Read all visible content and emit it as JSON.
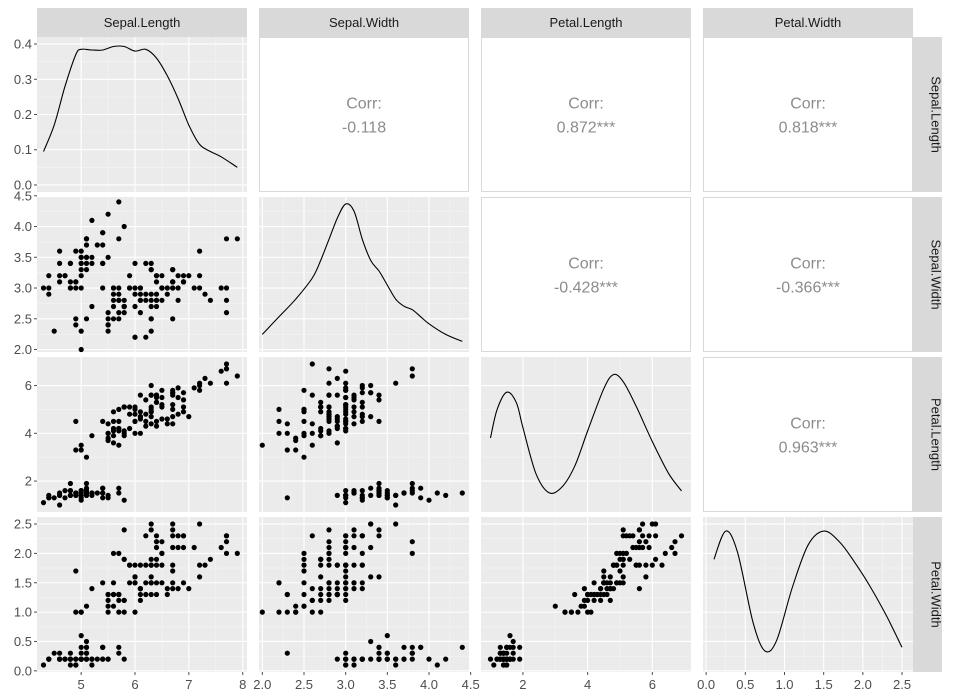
{
  "chart_data": {
    "type": "pairs",
    "title": "",
    "variables": [
      "Sepal.Length",
      "Sepal.Width",
      "Petal.Length",
      "Petal.Width"
    ],
    "colors": {
      "panel_bg": "#ebebeb",
      "grid_major": "#ffffff",
      "grid_minor": "#f5f5f5",
      "strip_bg": "#d9d9d9",
      "strip_text": "#1a1a1a",
      "axis_text": "#4d4d4d",
      "corr_text": "#8c8c8c",
      "corr_border": "#d9d9d9",
      "points": "#000000",
      "line": "#000000"
    },
    "ticks": [
      {
        "y": {
          "values": [
            0.0,
            0.1,
            0.2,
            0.3,
            0.4
          ],
          "labels": [
            "0.0",
            "0.1",
            "0.2",
            "0.3",
            "0.4"
          ]
        },
        "x": {
          "values": [
            5,
            6,
            7,
            8
          ],
          "labels": [
            "5",
            "6",
            "7",
            "8"
          ]
        }
      },
      {
        "y": {
          "values": [
            2.0,
            2.5,
            3.0,
            3.5,
            4.0,
            4.5
          ],
          "labels": [
            "2.0",
            "2.5",
            "3.0",
            "3.5",
            "4.0",
            "4.5"
          ]
        },
        "x": {
          "values": [
            2.0,
            2.5,
            3.0,
            3.5,
            4.0,
            4.5
          ],
          "labels": [
            "2.0",
            "2.5",
            "3.0",
            "3.5",
            "4.0",
            "4.5"
          ]
        }
      },
      {
        "y": {
          "values": [
            2,
            4,
            6
          ],
          "labels": [
            "2",
            "4",
            "6"
          ]
        },
        "x": {
          "values": [
            2,
            4,
            6
          ],
          "labels": [
            "2",
            "4",
            "6"
          ]
        }
      },
      {
        "y": {
          "values": [
            0.0,
            0.5,
            1.0,
            1.5,
            2.0,
            2.5
          ],
          "labels": [
            "0.0",
            "0.5",
            "1.0",
            "1.5",
            "2.0",
            "2.5"
          ]
        },
        "x": {
          "values": [
            0.0,
            0.5,
            1.0,
            1.5,
            2.0,
            2.5
          ],
          "labels": [
            "0.0",
            "0.5",
            "1.0",
            "1.5",
            "2.0",
            "2.5"
          ]
        }
      }
    ],
    "ranges": {
      "x": [
        [
          4.18,
          8.08
        ],
        [
          1.96,
          4.48
        ],
        [
          0.705,
          7.195
        ],
        [
          -0.04,
          2.64
        ]
      ],
      "y": [
        [
          -0.02,
          0.42
        ],
        [
          1.96,
          4.48
        ],
        [
          0.705,
          7.195
        ],
        [
          -0.02,
          2.62
        ]
      ],
      "density_y": [
        -0.02,
        0.42
      ]
    },
    "diagonal_densities": [
      {
        "variable": "Sepal.Length",
        "x": [
          4.3,
          4.5,
          4.7,
          4.9,
          5.0,
          5.2,
          5.4,
          5.6,
          5.8,
          6.0,
          6.2,
          6.4,
          6.6,
          6.8,
          7.0,
          7.2,
          7.4,
          7.6,
          7.9
        ],
        "y": [
          0.095,
          0.17,
          0.28,
          0.37,
          0.385,
          0.383,
          0.383,
          0.393,
          0.393,
          0.38,
          0.385,
          0.36,
          0.31,
          0.245,
          0.17,
          0.115,
          0.095,
          0.08,
          0.05
        ]
      },
      {
        "variable": "Sepal.Width",
        "x": [
          2.0,
          2.2,
          2.4,
          2.6,
          2.7,
          2.8,
          2.9,
          3.0,
          3.1,
          3.2,
          3.3,
          3.4,
          3.5,
          3.6,
          3.7,
          3.8,
          3.9,
          4.0,
          4.2,
          4.4
        ],
        "y": [
          0.03,
          0.08,
          0.13,
          0.19,
          0.24,
          0.3,
          0.36,
          0.4,
          0.38,
          0.3,
          0.24,
          0.21,
          0.17,
          0.13,
          0.11,
          0.1,
          0.08,
          0.06,
          0.03,
          0.01
        ]
      },
      {
        "variable": "Petal.Length",
        "x": [
          1.0,
          1.2,
          1.5,
          1.8,
          2.0,
          2.4,
          2.8,
          3.2,
          3.6,
          4.0,
          4.5,
          4.8,
          5.1,
          5.5,
          6.0,
          6.5,
          6.9
        ],
        "y": [
          0.19,
          0.27,
          0.32,
          0.29,
          0.22,
          0.09,
          0.035,
          0.05,
          0.11,
          0.21,
          0.33,
          0.37,
          0.35,
          0.28,
          0.18,
          0.09,
          0.04
        ]
      },
      {
        "variable": "Petal.Width",
        "x": [
          0.1,
          0.25,
          0.4,
          0.6,
          0.75,
          0.9,
          1.1,
          1.3,
          1.5,
          1.7,
          1.9,
          2.1,
          2.3,
          2.5
        ],
        "y": [
          0.3,
          0.38,
          0.32,
          0.12,
          0.04,
          0.07,
          0.22,
          0.34,
          0.38,
          0.35,
          0.29,
          0.22,
          0.14,
          0.05
        ]
      }
    ],
    "correlations": [
      {
        "row": 0,
        "col": 1,
        "label": "Corr:",
        "value": "-0.118"
      },
      {
        "row": 0,
        "col": 2,
        "label": "Corr:",
        "value": "0.872***"
      },
      {
        "row": 0,
        "col": 3,
        "label": "Corr:",
        "value": "0.818***"
      },
      {
        "row": 1,
        "col": 2,
        "label": "Corr:",
        "value": "-0.428***"
      },
      {
        "row": 1,
        "col": 3,
        "label": "Corr:",
        "value": "-0.366***"
      },
      {
        "row": 2,
        "col": 3,
        "label": "Corr:",
        "value": "0.963***"
      }
    ],
    "observations": [
      [
        5.1,
        3.5,
        1.4,
        0.2
      ],
      [
        4.9,
        3.0,
        1.4,
        0.2
      ],
      [
        4.7,
        3.2,
        1.3,
        0.2
      ],
      [
        4.6,
        3.1,
        1.5,
        0.2
      ],
      [
        5.0,
        3.6,
        1.4,
        0.2
      ],
      [
        5.4,
        3.9,
        1.7,
        0.4
      ],
      [
        4.6,
        3.4,
        1.4,
        0.3
      ],
      [
        5.0,
        3.4,
        1.5,
        0.2
      ],
      [
        4.4,
        2.9,
        1.4,
        0.2
      ],
      [
        4.9,
        3.1,
        1.5,
        0.1
      ],
      [
        5.4,
        3.7,
        1.5,
        0.2
      ],
      [
        4.8,
        3.4,
        1.6,
        0.2
      ],
      [
        4.8,
        3.0,
        1.4,
        0.1
      ],
      [
        4.3,
        3.0,
        1.1,
        0.1
      ],
      [
        5.8,
        4.0,
        1.2,
        0.2
      ],
      [
        5.7,
        4.4,
        1.5,
        0.4
      ],
      [
        5.4,
        3.9,
        1.3,
        0.4
      ],
      [
        5.1,
        3.5,
        1.4,
        0.3
      ],
      [
        5.7,
        3.8,
        1.7,
        0.3
      ],
      [
        5.1,
        3.8,
        1.5,
        0.3
      ],
      [
        5.4,
        3.4,
        1.7,
        0.2
      ],
      [
        5.1,
        3.7,
        1.5,
        0.4
      ],
      [
        4.6,
        3.6,
        1.0,
        0.2
      ],
      [
        5.1,
        3.3,
        1.7,
        0.5
      ],
      [
        4.8,
        3.4,
        1.9,
        0.2
      ],
      [
        5.0,
        3.0,
        1.6,
        0.2
      ],
      [
        5.0,
        3.4,
        1.6,
        0.4
      ],
      [
        5.2,
        3.5,
        1.5,
        0.2
      ],
      [
        5.2,
        3.4,
        1.4,
        0.2
      ],
      [
        4.7,
        3.2,
        1.6,
        0.2
      ],
      [
        4.8,
        3.1,
        1.6,
        0.2
      ],
      [
        5.4,
        3.4,
        1.5,
        0.4
      ],
      [
        5.2,
        4.1,
        1.5,
        0.1
      ],
      [
        5.5,
        4.2,
        1.4,
        0.2
      ],
      [
        4.9,
        3.1,
        1.5,
        0.2
      ],
      [
        5.0,
        3.2,
        1.2,
        0.2
      ],
      [
        5.5,
        3.5,
        1.3,
        0.2
      ],
      [
        4.9,
        3.6,
        1.4,
        0.1
      ],
      [
        4.4,
        3.0,
        1.3,
        0.2
      ],
      [
        5.1,
        3.4,
        1.5,
        0.2
      ],
      [
        5.0,
        3.5,
        1.3,
        0.3
      ],
      [
        4.5,
        2.3,
        1.3,
        0.3
      ],
      [
        4.4,
        3.2,
        1.3,
        0.2
      ],
      [
        5.0,
        3.5,
        1.6,
        0.6
      ],
      [
        5.1,
        3.8,
        1.9,
        0.4
      ],
      [
        4.8,
        3.0,
        1.4,
        0.3
      ],
      [
        5.1,
        3.8,
        1.6,
        0.2
      ],
      [
        4.6,
        3.2,
        1.4,
        0.2
      ],
      [
        5.3,
        3.7,
        1.5,
        0.2
      ],
      [
        5.0,
        3.3,
        1.4,
        0.2
      ],
      [
        7.0,
        3.2,
        4.7,
        1.4
      ],
      [
        6.4,
        3.2,
        4.5,
        1.5
      ],
      [
        6.9,
        3.1,
        4.9,
        1.5
      ],
      [
        5.5,
        2.3,
        4.0,
        1.3
      ],
      [
        6.5,
        2.8,
        4.6,
        1.5
      ],
      [
        5.7,
        2.8,
        4.5,
        1.3
      ],
      [
        6.3,
        3.3,
        4.7,
        1.6
      ],
      [
        4.9,
        2.4,
        3.3,
        1.0
      ],
      [
        6.6,
        2.9,
        4.6,
        1.3
      ],
      [
        5.2,
        2.7,
        3.9,
        1.4
      ],
      [
        5.0,
        2.0,
        3.5,
        1.0
      ],
      [
        5.9,
        3.0,
        4.2,
        1.5
      ],
      [
        6.0,
        2.2,
        4.0,
        1.0
      ],
      [
        6.1,
        2.9,
        4.7,
        1.4
      ],
      [
        5.6,
        2.9,
        3.6,
        1.3
      ],
      [
        6.7,
        3.1,
        4.4,
        1.4
      ],
      [
        5.6,
        3.0,
        4.5,
        1.5
      ],
      [
        5.8,
        2.7,
        4.1,
        1.0
      ],
      [
        6.2,
        2.2,
        4.5,
        1.5
      ],
      [
        5.6,
        2.5,
        3.9,
        1.1
      ],
      [
        5.9,
        3.2,
        4.8,
        1.8
      ],
      [
        6.1,
        2.8,
        4.0,
        1.3
      ],
      [
        6.3,
        2.5,
        4.9,
        1.5
      ],
      [
        6.1,
        2.8,
        4.7,
        1.2
      ],
      [
        6.4,
        2.9,
        4.3,
        1.3
      ],
      [
        6.6,
        3.0,
        4.4,
        1.4
      ],
      [
        6.8,
        2.8,
        4.8,
        1.4
      ],
      [
        6.7,
        3.0,
        5.0,
        1.7
      ],
      [
        6.0,
        2.9,
        4.5,
        1.5
      ],
      [
        5.7,
        2.6,
        3.5,
        1.0
      ],
      [
        5.5,
        2.4,
        3.8,
        1.1
      ],
      [
        5.5,
        2.4,
        3.7,
        1.0
      ],
      [
        5.8,
        2.7,
        3.9,
        1.2
      ],
      [
        6.0,
        2.7,
        5.1,
        1.6
      ],
      [
        5.4,
        3.0,
        4.5,
        1.5
      ],
      [
        6.0,
        3.4,
        4.5,
        1.6
      ],
      [
        6.7,
        3.1,
        4.7,
        1.5
      ],
      [
        6.3,
        2.3,
        4.4,
        1.3
      ],
      [
        5.6,
        3.0,
        4.1,
        1.3
      ],
      [
        5.5,
        2.5,
        4.0,
        1.3
      ],
      [
        5.5,
        2.6,
        4.4,
        1.2
      ],
      [
        6.1,
        3.0,
        4.6,
        1.4
      ],
      [
        5.8,
        2.6,
        4.0,
        1.2
      ],
      [
        5.0,
        2.3,
        3.3,
        1.0
      ],
      [
        5.6,
        2.7,
        4.2,
        1.3
      ],
      [
        5.7,
        3.0,
        4.2,
        1.2
      ],
      [
        5.7,
        2.9,
        4.2,
        1.3
      ],
      [
        6.2,
        2.9,
        4.3,
        1.3
      ],
      [
        5.1,
        2.5,
        3.0,
        1.1
      ],
      [
        5.7,
        2.8,
        4.1,
        1.3
      ],
      [
        6.3,
        3.3,
        6.0,
        2.5
      ],
      [
        5.8,
        2.7,
        5.1,
        1.9
      ],
      [
        7.1,
        3.0,
        5.9,
        2.1
      ],
      [
        6.3,
        2.9,
        5.6,
        1.8
      ],
      [
        6.5,
        3.0,
        5.8,
        2.2
      ],
      [
        7.6,
        3.0,
        6.6,
        2.1
      ],
      [
        4.9,
        2.5,
        4.5,
        1.7
      ],
      [
        7.3,
        2.9,
        6.3,
        1.8
      ],
      [
        6.7,
        2.5,
        5.8,
        1.8
      ],
      [
        7.2,
        3.6,
        6.1,
        2.5
      ],
      [
        6.5,
        3.2,
        5.1,
        2.0
      ],
      [
        6.4,
        2.7,
        5.3,
        1.9
      ],
      [
        6.8,
        3.0,
        5.5,
        2.1
      ],
      [
        5.7,
        2.5,
        5.0,
        2.0
      ],
      [
        5.8,
        2.8,
        5.1,
        2.4
      ],
      [
        6.4,
        3.2,
        5.3,
        2.3
      ],
      [
        6.5,
        3.0,
        5.5,
        1.8
      ],
      [
        7.7,
        3.8,
        6.7,
        2.2
      ],
      [
        7.7,
        2.6,
        6.9,
        2.3
      ],
      [
        6.0,
        2.2,
        5.0,
        1.5
      ],
      [
        6.9,
        3.2,
        5.7,
        2.3
      ],
      [
        5.6,
        2.8,
        4.9,
        2.0
      ],
      [
        7.7,
        2.8,
        6.7,
        2.0
      ],
      [
        6.3,
        2.7,
        4.9,
        1.8
      ],
      [
        6.7,
        3.3,
        5.7,
        2.1
      ],
      [
        7.2,
        3.2,
        6.0,
        1.8
      ],
      [
        6.2,
        2.8,
        4.8,
        1.8
      ],
      [
        6.1,
        3.0,
        4.9,
        1.8
      ],
      [
        6.4,
        2.8,
        5.6,
        2.1
      ],
      [
        7.2,
        3.0,
        5.8,
        1.6
      ],
      [
        7.4,
        2.8,
        6.1,
        1.9
      ],
      [
        7.9,
        3.8,
        6.4,
        2.0
      ],
      [
        6.4,
        2.8,
        5.6,
        2.2
      ],
      [
        6.3,
        2.8,
        5.1,
        1.5
      ],
      [
        6.1,
        2.6,
        5.6,
        1.4
      ],
      [
        7.7,
        3.0,
        6.1,
        2.3
      ],
      [
        6.3,
        3.4,
        5.6,
        2.4
      ],
      [
        6.4,
        3.1,
        5.5,
        1.8
      ],
      [
        6.0,
        3.0,
        4.8,
        1.8
      ],
      [
        6.9,
        3.1,
        5.4,
        2.1
      ],
      [
        6.7,
        3.1,
        5.6,
        2.4
      ],
      [
        6.9,
        3.1,
        5.1,
        2.3
      ],
      [
        5.8,
        2.7,
        5.1,
        1.9
      ],
      [
        6.8,
        3.2,
        5.9,
        2.3
      ],
      [
        6.7,
        3.3,
        5.7,
        2.5
      ],
      [
        6.7,
        3.0,
        5.2,
        2.3
      ],
      [
        6.3,
        2.5,
        5.0,
        1.9
      ],
      [
        6.5,
        3.0,
        5.2,
        2.0
      ],
      [
        6.2,
        3.4,
        5.4,
        2.3
      ],
      [
        5.9,
        3.0,
        5.1,
        1.8
      ]
    ]
  }
}
